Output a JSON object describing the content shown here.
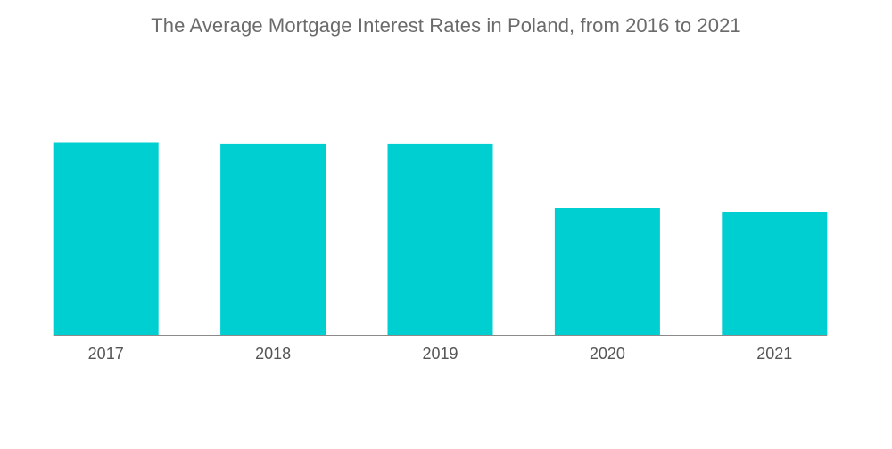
{
  "chart_data": {
    "type": "bar",
    "title": "The Average Mortgage Interest Rates in Poland, from 2016 to 2021",
    "categories": [
      "2017",
      "2018",
      "2019",
      "2020",
      "2021"
    ],
    "values": [
      4.55,
      4.5,
      4.5,
      3.0,
      2.9
    ],
    "xlabel": "",
    "ylabel": "",
    "ylim": [
      0,
      5.8
    ],
    "grid": false,
    "legend": "none",
    "colors": {
      "bar": "#00cfd2",
      "axis": "#8a8a8a"
    }
  }
}
